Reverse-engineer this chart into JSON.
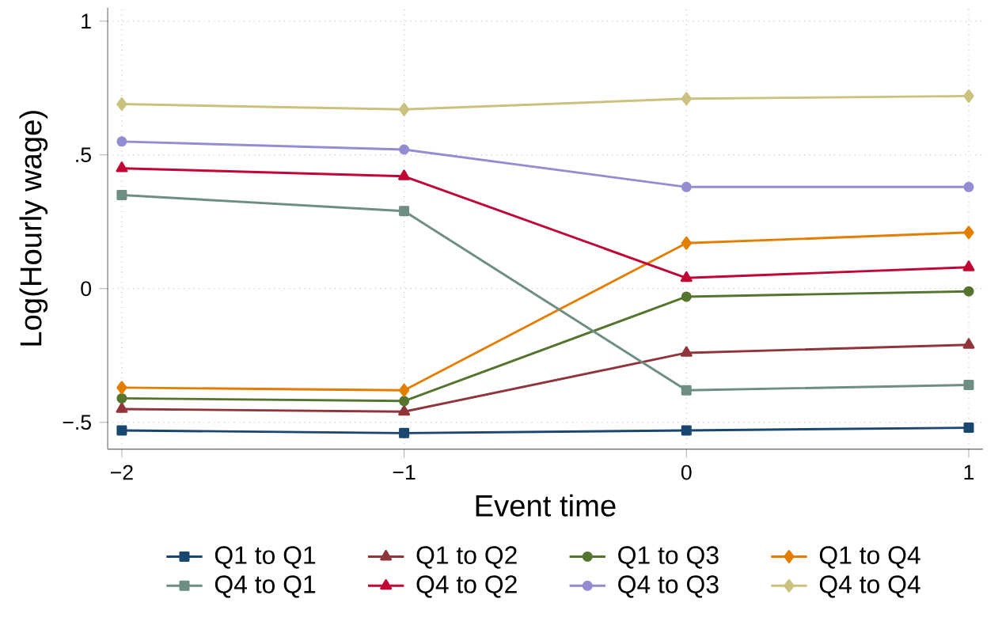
{
  "chart_data": {
    "type": "line",
    "xlabel": "Event time",
    "ylabel": "Log(Hourly wage)",
    "x": [
      -2,
      -1,
      0,
      1
    ],
    "xlim": [
      -2.05,
      1.05
    ],
    "ylim": [
      -0.6,
      1.05
    ],
    "xticks": [
      {
        "value": -2,
        "label": "−2"
      },
      {
        "value": -1,
        "label": "−1"
      },
      0,
      1
    ],
    "yticks": [
      {
        "value": -0.5,
        "label": "−.5"
      },
      0,
      {
        "value": 0.5,
        "label": ".5"
      },
      1
    ],
    "grid": true,
    "legend": "bottom",
    "line_style": "solid",
    "series": [
      {
        "name": "Q1 to Q1",
        "color": "#1a476f",
        "marker": "square",
        "values": [
          -0.53,
          -0.54,
          -0.53,
          -0.52
        ]
      },
      {
        "name": "Q1 to Q2",
        "color": "#90353b",
        "marker": "triangle",
        "values": [
          -0.45,
          -0.46,
          -0.24,
          -0.21
        ]
      },
      {
        "name": "Q1 to Q3",
        "color": "#55752f",
        "marker": "circle",
        "values": [
          -0.41,
          -0.42,
          -0.03,
          -0.01
        ]
      },
      {
        "name": "Q1 to Q4",
        "color": "#e37e00",
        "marker": "diamond",
        "values": [
          -0.37,
          -0.38,
          0.17,
          0.21
        ]
      },
      {
        "name": "Q4 to Q1",
        "color": "#6e8e84",
        "marker": "square",
        "values": [
          0.35,
          0.29,
          -0.38,
          -0.36
        ]
      },
      {
        "name": "Q4 to Q2",
        "color": "#c10534",
        "marker": "triangle",
        "values": [
          0.45,
          0.42,
          0.04,
          0.08
        ]
      },
      {
        "name": "Q4 to Q3",
        "color": "#938dd2",
        "marker": "circle",
        "values": [
          0.55,
          0.52,
          0.38,
          0.38
        ]
      },
      {
        "name": "Q4 to Q4",
        "color": "#cac27e",
        "marker": "diamond",
        "values": [
          0.69,
          0.67,
          0.71,
          0.72
        ]
      }
    ]
  }
}
